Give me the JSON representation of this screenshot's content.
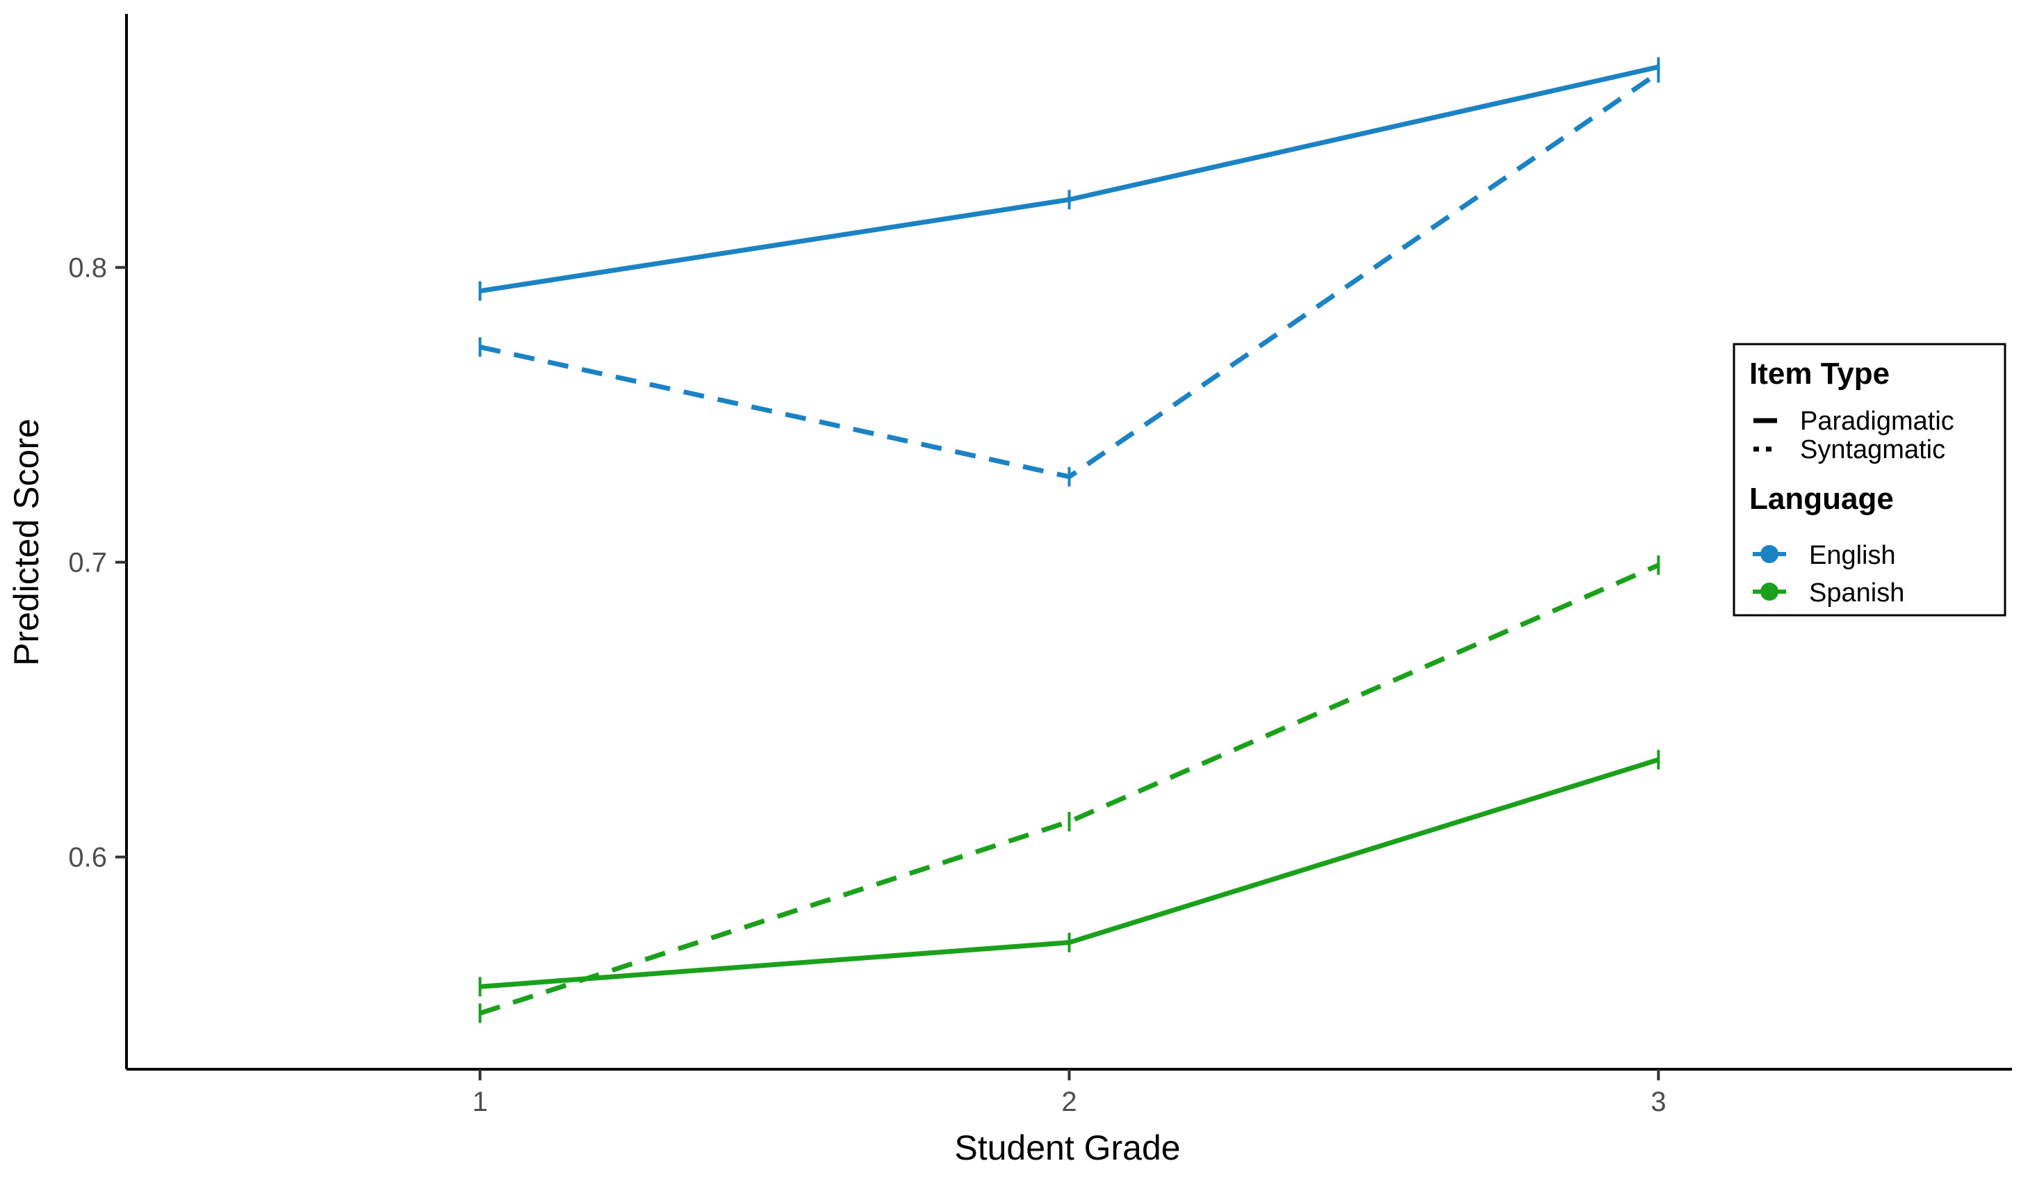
{
  "chart_data": {
    "type": "line",
    "title": "",
    "xlabel": "Student Grade",
    "ylabel": "Predicted Score",
    "x": [
      1,
      2,
      3
    ],
    "x_tick_labels": [
      "1",
      "2",
      "3"
    ],
    "xlim": [
      0.4,
      3.6
    ],
    "ylim": [
      0.528,
      0.886
    ],
    "y_ticks": [
      0.6,
      0.7,
      0.8
    ],
    "y_tick_labels": [
      "0.6",
      "0.7",
      "0.8"
    ],
    "grid": false,
    "legend_position": "right",
    "legend": {
      "item_type": {
        "title": "Item Type",
        "entries": [
          "Paradigmatic",
          "Syntagmatic"
        ]
      },
      "language": {
        "title": "Language",
        "entries": [
          "English",
          "Spanish"
        ]
      }
    },
    "colors": {
      "English": "#1b82c4",
      "Spanish": "#1aa01a"
    },
    "series": [
      {
        "language": "English",
        "item_type": "Paradigmatic",
        "dash": "solid",
        "values": [
          0.792,
          0.823,
          0.868
        ]
      },
      {
        "language": "English",
        "item_type": "Syntagmatic",
        "dash": "dashed",
        "values": [
          0.773,
          0.729,
          0.866
        ]
      },
      {
        "language": "Spanish",
        "item_type": "Paradigmatic",
        "dash": "solid",
        "values": [
          0.556,
          0.571,
          0.633
        ]
      },
      {
        "language": "Spanish",
        "item_type": "Syntagmatic",
        "dash": "dashed",
        "values": [
          0.547,
          0.612,
          0.699
        ]
      }
    ]
  }
}
